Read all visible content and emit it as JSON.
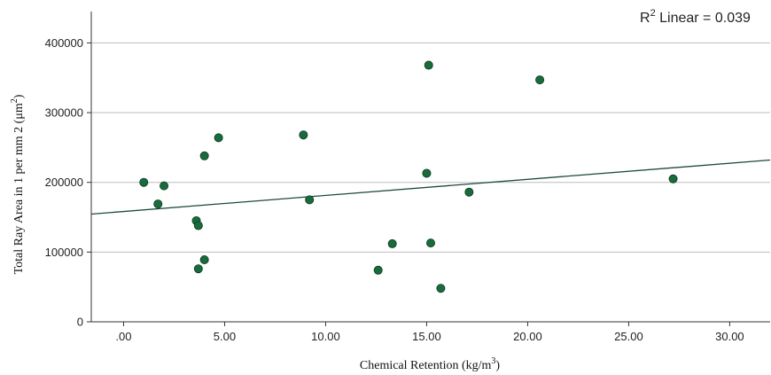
{
  "chart_data": {
    "type": "scatter",
    "xlabel_main": "Chemical Retention (kg/m",
    "xlabel_sup": "3",
    "xlabel_end": ")",
    "ylabel_main": "Total Ray Area in 1 per mm 2  (μm",
    "ylabel_sup": "2",
    "ylabel_end": ")",
    "annotation_main": "R",
    "annotation_sup": "2",
    "annotation_end": " Linear = 0.039",
    "x_ticks": [
      ".00",
      "5.00",
      "10.00",
      "15.00",
      "20.00",
      "25.00",
      "30.00"
    ],
    "x_tick_values": [
      0,
      5,
      10,
      15,
      20,
      25,
      30
    ],
    "y_ticks": [
      "0",
      "100000",
      "200000",
      "300000",
      "400000"
    ],
    "y_tick_values": [
      0,
      100000,
      200000,
      300000,
      400000
    ],
    "xlim": [
      -1.6,
      32.0
    ],
    "ylim": [
      0,
      445000
    ],
    "grid": "horizontal",
    "point_color": "#1a6b3c",
    "line_color": "#1f4a38",
    "fit_line": {
      "x": [
        -1.6,
        32.0
      ],
      "y": [
        154500,
        232000
      ]
    },
    "points": [
      {
        "x": 1.0,
        "y": 200000
      },
      {
        "x": 1.7,
        "y": 169000
      },
      {
        "x": 2.0,
        "y": 195000
      },
      {
        "x": 3.6,
        "y": 145000
      },
      {
        "x": 3.7,
        "y": 138000
      },
      {
        "x": 3.7,
        "y": 76000
      },
      {
        "x": 4.0,
        "y": 89000
      },
      {
        "x": 4.0,
        "y": 238000
      },
      {
        "x": 4.7,
        "y": 264000
      },
      {
        "x": 8.9,
        "y": 268000
      },
      {
        "x": 9.2,
        "y": 175000
      },
      {
        "x": 12.6,
        "y": 74000
      },
      {
        "x": 13.3,
        "y": 112000
      },
      {
        "x": 15.0,
        "y": 213000
      },
      {
        "x": 15.1,
        "y": 368000
      },
      {
        "x": 15.2,
        "y": 113000
      },
      {
        "x": 15.7,
        "y": 48000
      },
      {
        "x": 17.1,
        "y": 186000
      },
      {
        "x": 20.6,
        "y": 347000
      },
      {
        "x": 27.2,
        "y": 205000
      }
    ]
  }
}
